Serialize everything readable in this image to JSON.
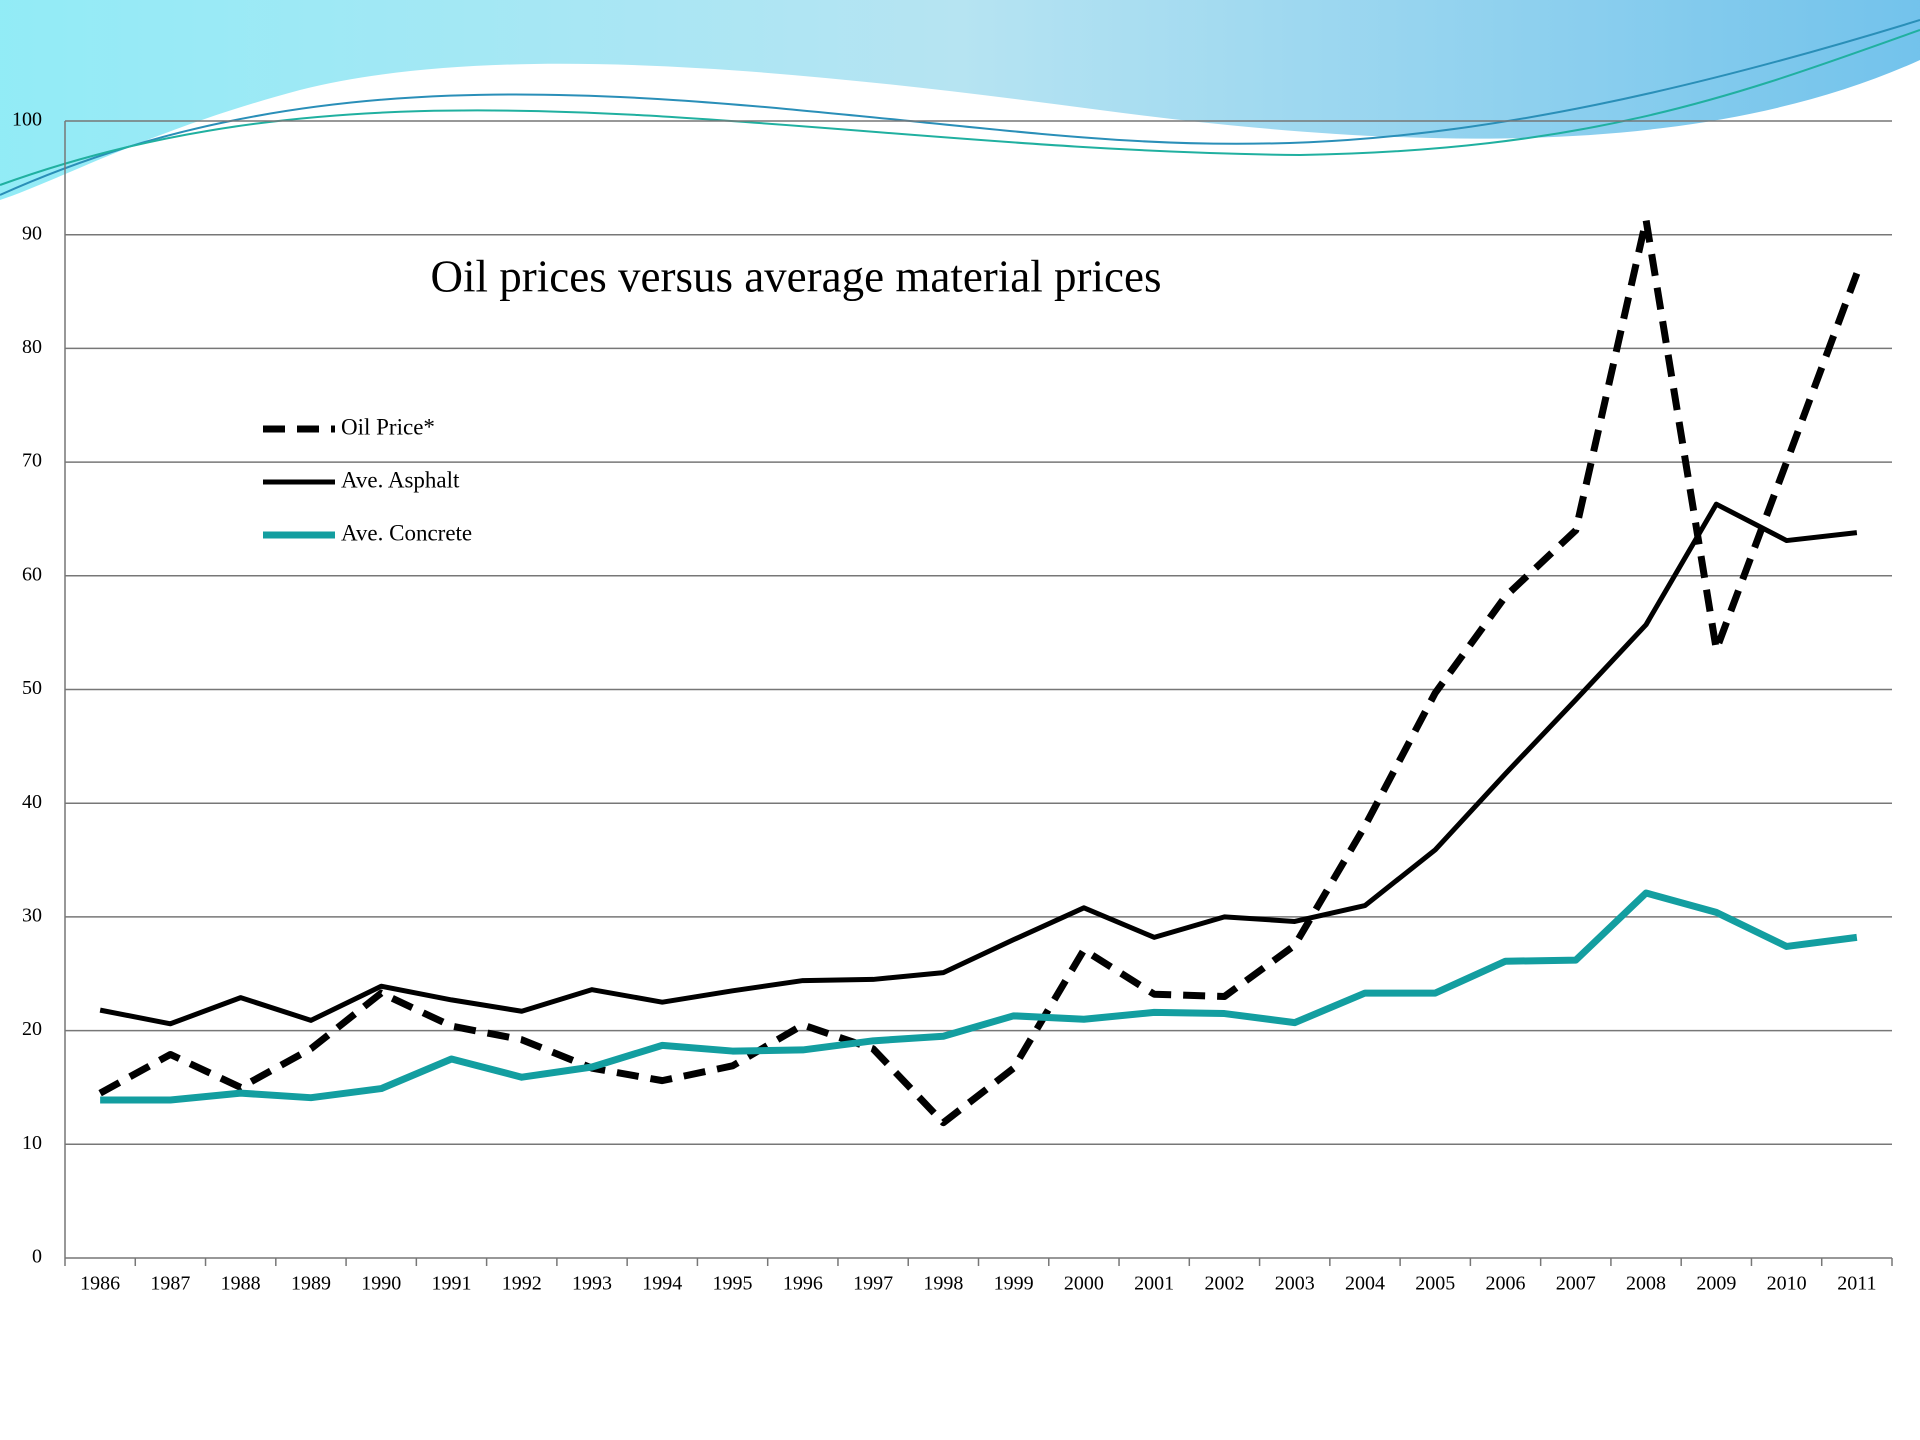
{
  "chart_data": {
    "type": "line",
    "title": "Oil prices versus average material prices",
    "categories": [
      "1986",
      "1987",
      "1988",
      "1989",
      "1990",
      "1991",
      "1992",
      "1993",
      "1994",
      "1995",
      "1996",
      "1997",
      "1998",
      "1999",
      "2000",
      "2001",
      "2002",
      "2003",
      "2004",
      "2005",
      "2006",
      "2007",
      "2008",
      "2009",
      "2010",
      "2011"
    ],
    "series": [
      {
        "name": "Oil Price*",
        "color": "#000000",
        "dashed": true,
        "values": [
          14.5,
          17.9,
          15.0,
          18.4,
          23.3,
          20.4,
          19.2,
          16.7,
          15.6,
          16.9,
          20.5,
          18.4,
          11.9,
          16.7,
          27.1,
          23.2,
          23.0,
          27.5,
          38.0,
          49.7,
          58.2,
          64.0,
          91.3,
          53.5,
          70.0,
          86.6
        ]
      },
      {
        "name": "Ave. Asphalt",
        "color": "#000000",
        "dashed": false,
        "values": [
          21.8,
          20.6,
          22.9,
          20.9,
          23.9,
          22.7,
          21.7,
          23.6,
          22.5,
          23.5,
          24.4,
          24.5,
          25.1,
          28.0,
          30.8,
          28.2,
          30.0,
          29.6,
          31.0,
          35.9,
          42.6,
          49.1,
          55.7,
          66.3,
          63.1,
          63.8
        ]
      },
      {
        "name": "Ave. Concrete",
        "color": "#139ea0",
        "dashed": false,
        "values": [
          13.9,
          13.9,
          14.5,
          14.1,
          14.9,
          17.5,
          15.9,
          16.8,
          18.7,
          18.2,
          18.3,
          19.1,
          19.5,
          21.3,
          21.0,
          21.6,
          21.5,
          20.7,
          23.3,
          23.3,
          26.1,
          26.2,
          32.1,
          30.4,
          27.4,
          28.2
        ]
      }
    ],
    "ylim": [
      0,
      100
    ],
    "yticks": [
      0,
      10,
      20,
      30,
      40,
      50,
      60,
      70,
      80,
      90,
      100
    ],
    "grid": true,
    "legend": "top-left"
  }
}
